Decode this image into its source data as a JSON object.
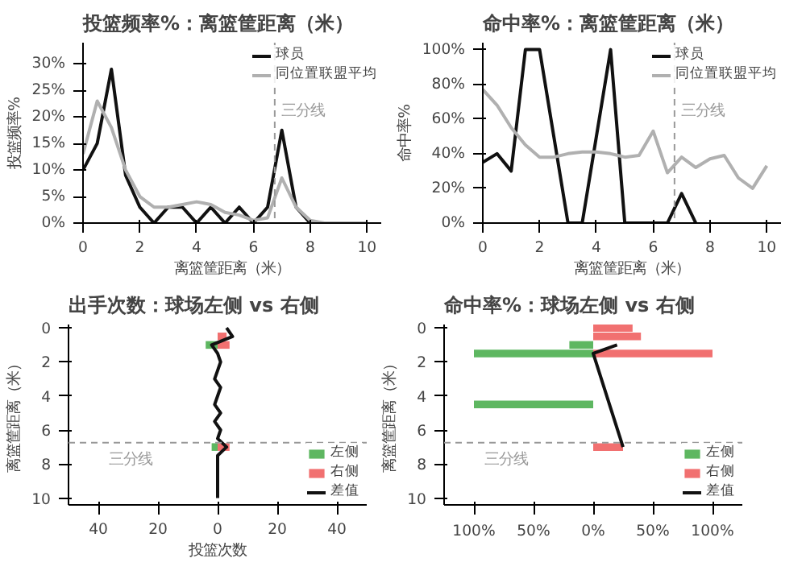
{
  "chart_data": [
    {
      "type": "line",
      "title": "投篮频率%：离篮筐距离（米）",
      "xlabel": "离篮筐距离（米）",
      "ylabel": "投篮频率%",
      "xlim": [
        0,
        10.5
      ],
      "ylim": [
        0,
        34
      ],
      "xticks": [
        0,
        2,
        4,
        6,
        8,
        10
      ],
      "yticks": [
        {
          "value": 0,
          "label": "0%"
        },
        {
          "value": 5,
          "label": "5%"
        },
        {
          "value": 10,
          "label": "10%"
        },
        {
          "value": 15,
          "label": "15%"
        },
        {
          "value": 20,
          "label": "20%"
        },
        {
          "value": 25,
          "label": "25%"
        },
        {
          "value": 30,
          "label": "30%"
        }
      ],
      "legend": "top",
      "x": [
        0,
        0.5,
        1,
        1.5,
        2,
        2.5,
        3,
        3.5,
        4,
        4.5,
        5,
        5.5,
        6,
        6.5,
        7,
        7.5,
        8,
        8.5,
        9,
        9.5,
        10
      ],
      "series": [
        {
          "name": "球员",
          "color": "#111111",
          "values": [
            10,
            15,
            29,
            9,
            3,
            0,
            3,
            3,
            0,
            3,
            0,
            3,
            0,
            3,
            17.5,
            3,
            0,
            null,
            null,
            null,
            null
          ]
        },
        {
          "name": "同位置联盟平均",
          "color": "#b0b0b0",
          "values": [
            13,
            23,
            18,
            10,
            5,
            3,
            3,
            3.5,
            4,
            3.5,
            2,
            1.5,
            0.5,
            1,
            8.5,
            3,
            0.5,
            0,
            0,
            0,
            0
          ]
        }
      ],
      "ref_lines": [
        {
          "axis": "x",
          "value": 6.75,
          "label": "三分线",
          "color": "#999999",
          "line_style": "dashed"
        }
      ]
    },
    {
      "type": "line",
      "title": "命中率%：离篮筐距离（米）",
      "xlabel": "离篮筐距离（米）",
      "ylabel": "命中率%",
      "xlim": [
        0,
        10.5
      ],
      "ylim": [
        0,
        104
      ],
      "xticks": [
        0,
        2,
        4,
        6,
        8,
        10
      ],
      "yticks": [
        {
          "value": 0,
          "label": "0%"
        },
        {
          "value": 20,
          "label": "20%"
        },
        {
          "value": 40,
          "label": "40%"
        },
        {
          "value": 60,
          "label": "60%"
        },
        {
          "value": 80,
          "label": "80%"
        },
        {
          "value": 100,
          "label": "100%"
        }
      ],
      "legend": "top",
      "x": [
        0,
        0.5,
        1,
        1.5,
        2,
        2.5,
        3,
        3.5,
        4,
        4.5,
        5,
        5.5,
        6,
        6.5,
        7,
        7.5,
        8,
        8.5,
        9,
        9.5,
        10
      ],
      "series": [
        {
          "name": "球员",
          "color": "#111111",
          "values": [
            35,
            40,
            30,
            100,
            100,
            50,
            0,
            0,
            50,
            100,
            0,
            0,
            0,
            0,
            17,
            0,
            null,
            null,
            null,
            null,
            null
          ]
        },
        {
          "name": "同位置联盟平均",
          "color": "#b0b0b0",
          "values": [
            77,
            68,
            55,
            45,
            38,
            38,
            40,
            41,
            41,
            40,
            38,
            39,
            53,
            29,
            38,
            32,
            37,
            39,
            26,
            20,
            33
          ]
        }
      ],
      "ref_lines": [
        {
          "axis": "x",
          "value": 6.75,
          "label": "三分线",
          "color": "#999999",
          "line_style": "dashed"
        }
      ]
    },
    {
      "type": "bar",
      "orientation": "horizontal",
      "title": "出手次数：球场左侧 vs 右侧",
      "xlabel": "投篮次数",
      "ylabel": "离篮筐距离（米）",
      "xlim": [
        -50,
        50
      ],
      "ylim": [
        10.4,
        -0.2
      ],
      "xticks": [
        {
          "value": -40,
          "label": "40"
        },
        {
          "value": -20,
          "label": "20"
        },
        0,
        20,
        40
      ],
      "yticks": [
        0,
        2,
        4,
        6,
        8,
        10
      ],
      "legend": "bottom",
      "series": [
        {
          "name": "左侧",
          "color": "#4caf50",
          "x": [
            1,
            7
          ],
          "values": [
            -4,
            -2
          ]
        },
        {
          "name": "右侧",
          "color": "#f06060",
          "x": [
            0.5,
            1,
            7
          ],
          "values": [
            3,
            4,
            4
          ]
        },
        {
          "name": "差值",
          "type": "line",
          "color": "#111111",
          "x": [
            0,
            0.5,
            1,
            1.5,
            2,
            2.5,
            3,
            3.5,
            4,
            4.5,
            5,
            5.5,
            6,
            6.5,
            7,
            7.5,
            8,
            8.5,
            9,
            9.5,
            10
          ],
          "values": [
            3,
            5,
            -2,
            0,
            1,
            0,
            -1,
            1,
            0,
            -1,
            1,
            -1,
            1,
            0,
            3,
            0,
            0,
            0,
            0,
            0,
            0
          ]
        }
      ],
      "ref_lines": [
        {
          "axis": "y",
          "value": 6.75,
          "label": "三分线",
          "color": "#999999",
          "line_style": "dashed"
        }
      ]
    },
    {
      "type": "bar",
      "orientation": "horizontal",
      "title": "命中率%：球场左侧 vs 右侧",
      "ylabel": "离篮筐距离（米）",
      "xlim": [
        -125,
        125
      ],
      "ylim": [
        10.4,
        -0.2
      ],
      "xticks": [
        {
          "value": -100,
          "label": "100%"
        },
        {
          "value": -50,
          "label": "50%"
        },
        {
          "value": 0,
          "label": "0%"
        },
        {
          "value": 50,
          "label": "50%"
        },
        {
          "value": 100,
          "label": "100%"
        }
      ],
      "yticks": [
        0,
        2,
        4,
        6,
        8,
        10
      ],
      "legend": "bottom",
      "series": [
        {
          "name": "左侧",
          "color": "#4caf50",
          "x": [
            1,
            1.5,
            4.5
          ],
          "values": [
            -20,
            -100,
            -100
          ]
        },
        {
          "name": "右侧",
          "color": "#f06060",
          "x": [
            0,
            0.5,
            1.5,
            7
          ],
          "values": [
            33,
            40,
            100,
            25
          ]
        },
        {
          "name": "差值",
          "type": "line",
          "color": "#111111",
          "x": [
            1,
            1.5,
            7
          ],
          "values": [
            20,
            0,
            25
          ]
        }
      ],
      "ref_lines": [
        {
          "axis": "y",
          "value": 6.75,
          "label": "三分线",
          "color": "#999999",
          "line_style": "dashed"
        }
      ]
    }
  ]
}
